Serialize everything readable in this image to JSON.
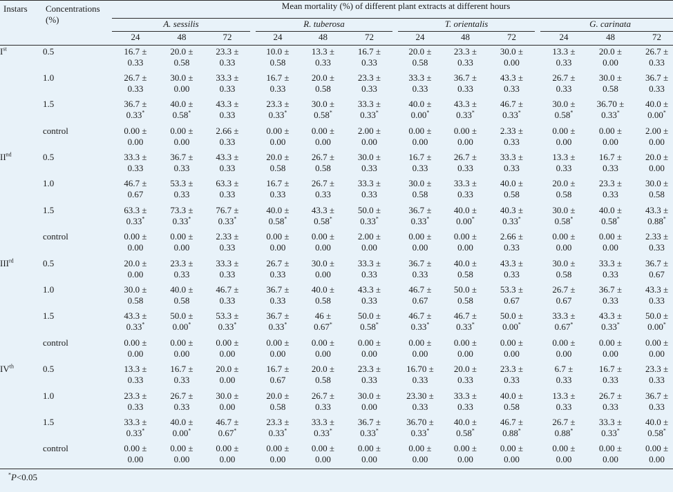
{
  "headers": {
    "instars": "Instars",
    "concentrations": "Concentrations",
    "concentrations_unit": "(%)",
    "main": "Mean mortality (%) of different plant extracts at different hours",
    "plants": [
      "A. sessilis",
      "R. tuberosa",
      "T. orientalis",
      "G. carinata"
    ],
    "hours": [
      "24",
      "48",
      "72"
    ]
  },
  "groups": [
    {
      "instar": "I",
      "suffix": "st",
      "rows": [
        {
          "conc": "0.5",
          "cells": [
            [
              "16.7 ±",
              "0.33"
            ],
            [
              "20.0 ±",
              "0.58"
            ],
            [
              "23.3 ±",
              "0.33"
            ],
            [
              "10.0 ±",
              "0.58"
            ],
            [
              "13.3 ±",
              "0.33"
            ],
            [
              "16.7 ±",
              "0.33"
            ],
            [
              "20.0 ±",
              "0.58"
            ],
            [
              "23.3 ±",
              "0.33"
            ],
            [
              "30.0 ±",
              "0.00"
            ],
            [
              "13.3 ±",
              "0.33"
            ],
            [
              "20.0 ±",
              "0.00"
            ],
            [
              "26.7 ±",
              "0.33"
            ]
          ]
        },
        {
          "conc": "1.0",
          "cells": [
            [
              "26.7 ±",
              "0.33"
            ],
            [
              "30.0 ±",
              "0.00"
            ],
            [
              "33.3 ±",
              "0.33"
            ],
            [
              "16.7 ±",
              "0.33"
            ],
            [
              "20.0 ±",
              "0.58"
            ],
            [
              "23.3 ±",
              "0.33"
            ],
            [
              "33.3 ±",
              "0.33"
            ],
            [
              "36.7 ±",
              "0.33"
            ],
            [
              "43.3 ±",
              "0.33"
            ],
            [
              "26.7 ±",
              "0.33"
            ],
            [
              "30.0 ±",
              "0.58"
            ],
            [
              "36.7 ±",
              "0.33"
            ]
          ]
        },
        {
          "conc": "1.5",
          "cells": [
            [
              "36.7 ±",
              "0.33*"
            ],
            [
              "40.0 ±",
              "0.58*"
            ],
            [
              "43.3 ±",
              "0.33"
            ],
            [
              "23.3 ±",
              "0.33*"
            ],
            [
              "30.0 ±",
              "0.58*"
            ],
            [
              "33.3 ±",
              "0.33*"
            ],
            [
              "40.0 ±",
              "0.00*"
            ],
            [
              "43.3 ±",
              "0.33*"
            ],
            [
              "46.7 ±",
              "0.33*"
            ],
            [
              "30.0 ±",
              "0.58*"
            ],
            [
              "36.70 ±",
              "0.33*"
            ],
            [
              "40.0 ±",
              "0.00*"
            ]
          ]
        },
        {
          "conc": "control",
          "cells": [
            [
              "0.00 ±",
              "0.00"
            ],
            [
              "0.00 ±",
              "0.00"
            ],
            [
              "2.66 ±",
              "0.33"
            ],
            [
              "0.00 ±",
              "0.00"
            ],
            [
              "0.00 ±",
              "0.00"
            ],
            [
              "2.00 ±",
              "0.00"
            ],
            [
              "0.00 ±",
              "0.00"
            ],
            [
              "0.00 ±",
              "0.00"
            ],
            [
              "2.33 ±",
              "0.33"
            ],
            [
              "0.00 ±",
              "0.00"
            ],
            [
              "0.00 ±",
              "0.00"
            ],
            [
              "2.00 ±",
              "0.00"
            ]
          ]
        }
      ]
    },
    {
      "instar": "II",
      "suffix": "nd",
      "rows": [
        {
          "conc": "0.5",
          "cells": [
            [
              "33.3 ±",
              "0.33"
            ],
            [
              "36.7 ±",
              "0.33"
            ],
            [
              "43.3 ±",
              "0.33"
            ],
            [
              "20.0 ±",
              "0.58"
            ],
            [
              "26.7 ±",
              "0.58"
            ],
            [
              "30.0 ±",
              "0.33"
            ],
            [
              "16.7 ±",
              "0.33"
            ],
            [
              "26.7 ±",
              "0.33"
            ],
            [
              "33.3 ±",
              "0.33"
            ],
            [
              "13.3 ±",
              "0.33"
            ],
            [
              "16.7 ±",
              "0.33"
            ],
            [
              "20.0 ±",
              "0.00"
            ]
          ]
        },
        {
          "conc": "1.0",
          "cells": [
            [
              "46.7 ±",
              "0.67"
            ],
            [
              "53.3 ±",
              "0.33"
            ],
            [
              "63.3 ±",
              "0.33"
            ],
            [
              "16.7 ±",
              "0.33"
            ],
            [
              "26.7 ±",
              "0.33"
            ],
            [
              "33.3 ±",
              "0.33"
            ],
            [
              "30.0 ±",
              "0.58"
            ],
            [
              "33.3 ±",
              "0.33"
            ],
            [
              "40.0 ±",
              "0.58"
            ],
            [
              "20.0 ±",
              "0.58"
            ],
            [
              "23.3 ±",
              "0.33"
            ],
            [
              "30.0 ±",
              "0.58"
            ]
          ]
        },
        {
          "conc": "1.5",
          "cells": [
            [
              "63.3 ±",
              "0.33*"
            ],
            [
              "73.3 ±",
              "0.33*"
            ],
            [
              "76.7 ±",
              "0.33*"
            ],
            [
              "40.0 ±",
              "0.58*"
            ],
            [
              "43.3 ±",
              "0.58*"
            ],
            [
              "50.0 ±",
              "0.33*"
            ],
            [
              "36.7 ±",
              "0.33*"
            ],
            [
              "40.0 ±",
              "0.00*"
            ],
            [
              "40.3 ±",
              "0.33*"
            ],
            [
              "30.0 ±",
              "0.58*"
            ],
            [
              "40.0 ±",
              "0.58*"
            ],
            [
              "43.3 ±",
              "0.88*"
            ]
          ]
        },
        {
          "conc": "control",
          "cells": [
            [
              "0.00 ±",
              "0.00"
            ],
            [
              "0.00 ±",
              "0.00"
            ],
            [
              "2.33 ±",
              "0.33"
            ],
            [
              "0.00 ±",
              "0.00"
            ],
            [
              "0.00 ±",
              "0.00"
            ],
            [
              "2.00 ±",
              "0.00"
            ],
            [
              "0.00 ±",
              "0.00"
            ],
            [
              "0.00 ±",
              "0.00"
            ],
            [
              "2.66 ±",
              "0.33"
            ],
            [
              "0.00 ±",
              "0.00"
            ],
            [
              "0.00 ±",
              "0.00"
            ],
            [
              "2.33 ±",
              "0.33"
            ]
          ]
        }
      ]
    },
    {
      "instar": "III",
      "suffix": "rd",
      "rows": [
        {
          "conc": "0.5",
          "cells": [
            [
              "20.0 ±",
              "0.00"
            ],
            [
              "23.3 ±",
              "0.33"
            ],
            [
              "33.3 ±",
              "0.33"
            ],
            [
              "26.7 ±",
              "0.33"
            ],
            [
              "30.0 ±",
              "0.00"
            ],
            [
              "33.3 ±",
              "0.33"
            ],
            [
              "36.7 ±",
              "0.33"
            ],
            [
              "40.0 ±",
              "0.58"
            ],
            [
              "43.3 ±",
              "0.33"
            ],
            [
              "30.0 ±",
              "0.58"
            ],
            [
              "33.3 ±",
              "0.33"
            ],
            [
              "36.7 ±",
              "0.67"
            ]
          ]
        },
        {
          "conc": "1.0",
          "cells": [
            [
              "30.0 ±",
              "0.58"
            ],
            [
              "40.0 ±",
              "0.58"
            ],
            [
              "46.7 ±",
              "0.33"
            ],
            [
              "36.7 ±",
              "0.33"
            ],
            [
              "40.0 ±",
              "0.58"
            ],
            [
              "43.3 ±",
              "0.33"
            ],
            [
              "46.7 ±",
              "0.67"
            ],
            [
              "50.0 ±",
              "0.58"
            ],
            [
              "53.3 ±",
              "0.67"
            ],
            [
              "26.7 ±",
              "0.67"
            ],
            [
              "36.7 ±",
              "0.33"
            ],
            [
              "43.3 ±",
              "0.33"
            ]
          ]
        },
        {
          "conc": "1.5",
          "cells": [
            [
              "43.3 ±",
              "0.33*"
            ],
            [
              "50.0 ±",
              "0.00*"
            ],
            [
              "53.3 ±",
              "0.33*"
            ],
            [
              "36.7 ±",
              "0.33*"
            ],
            [
              "46 ±",
              "0.67*"
            ],
            [
              "50.0 ±",
              "0.58*"
            ],
            [
              "46.7 ±",
              "0.33*"
            ],
            [
              "46.7 ±",
              "0.33*"
            ],
            [
              "50.0 ±",
              "0.00*"
            ],
            [
              "33.3 ±",
              "0.67*"
            ],
            [
              "43.3 ±",
              "0.33*"
            ],
            [
              "50.0 ±",
              "0.00*"
            ]
          ]
        },
        {
          "conc": "control",
          "cells": [
            [
              "0.00 ±",
              "0.00"
            ],
            [
              "0.00 ±",
              "0.00"
            ],
            [
              "0.00 ±",
              "0.00"
            ],
            [
              "0.00 ±",
              "0.00"
            ],
            [
              "0.00 ±",
              "0.00"
            ],
            [
              "0.00 ±",
              "0.00"
            ],
            [
              "0.00 ±",
              "0.00"
            ],
            [
              "0.00 ±",
              "0.00"
            ],
            [
              "0.00 ±",
              "0.00"
            ],
            [
              "0.00 ±",
              "0.00"
            ],
            [
              "0.00 ±",
              "0.00"
            ],
            [
              "0.00 ±",
              "0.00"
            ]
          ]
        }
      ]
    },
    {
      "instar": "IV",
      "suffix": "th",
      "rows": [
        {
          "conc": "0.5",
          "cells": [
            [
              "13.3 ±",
              "0.33"
            ],
            [
              "16.7 ±",
              "0.33"
            ],
            [
              "20.0 ±",
              "0.00"
            ],
            [
              "16.7 ±",
              "0.67"
            ],
            [
              "20.0 ±",
              "0.58"
            ],
            [
              "23.3 ±",
              "0.33"
            ],
            [
              "16.70 ±",
              "0.33"
            ],
            [
              "20.0 ±",
              "0.33"
            ],
            [
              "23.3 ±",
              "0.33"
            ],
            [
              "6.7 ±",
              "0.33"
            ],
            [
              "16.7 ±",
              "0.33"
            ],
            [
              "23.3 ±",
              "0.33"
            ]
          ]
        },
        {
          "conc": "1.0",
          "cells": [
            [
              "23.3 ±",
              "0.33"
            ],
            [
              "26.7 ±",
              "0.33"
            ],
            [
              "30.0 ±",
              "0.00"
            ],
            [
              "20.0 ±",
              "0.58"
            ],
            [
              "26.7 ±",
              "0.33"
            ],
            [
              "30.0 ±",
              "0.00"
            ],
            [
              "23.30 ±",
              "0.33"
            ],
            [
              "33.3 ±",
              "0.33"
            ],
            [
              "40.0 ±",
              "0.58"
            ],
            [
              "13.3 ±",
              "0.33"
            ],
            [
              "26.7 ±",
              "0.33"
            ],
            [
              "36.7 ±",
              "0.33"
            ]
          ]
        },
        {
          "conc": "1.5",
          "cells": [
            [
              "33.3 ±",
              "0.33*"
            ],
            [
              "40.0 ±",
              "0.00*"
            ],
            [
              "46.7 ±",
              "0.67*"
            ],
            [
              "23.3 ±",
              "0.33*"
            ],
            [
              "33.3 ±",
              "0.33*"
            ],
            [
              "36.7 ±",
              "0.33*"
            ],
            [
              "36.70 ±",
              "0.33*"
            ],
            [
              "40.0 ±",
              "0.58*"
            ],
            [
              "46.7 ±",
              "0.88*"
            ],
            [
              "26.7 ±",
              "0.88*"
            ],
            [
              "33.3 ±",
              "0.33*"
            ],
            [
              "40.0 ±",
              "0.58*"
            ]
          ]
        },
        {
          "conc": "control",
          "cells": [
            [
              "0.00 ±",
              "0.00"
            ],
            [
              "0.00 ±",
              "0.00"
            ],
            [
              "0.00 ±",
              "0.00"
            ],
            [
              "0.00 ±",
              "0.00"
            ],
            [
              "0.00 ±",
              "0.00"
            ],
            [
              "0.00 ±",
              "0.00"
            ],
            [
              "0.00 ±",
              "0.00"
            ],
            [
              "0.00 ±",
              "0.00"
            ],
            [
              "0.00 ±",
              "0.00"
            ],
            [
              "0.00 ±",
              "0.00"
            ],
            [
              "0.00 ±",
              "0.00"
            ],
            [
              "0.00 ±",
              "0.00"
            ]
          ]
        }
      ]
    }
  ],
  "footnote": {
    "marker": "*",
    "p": "P",
    "text": "<0.05"
  }
}
